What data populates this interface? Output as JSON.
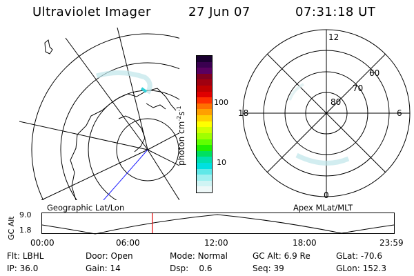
{
  "header": {
    "instrument": "Ultraviolet Imager",
    "date": "27 Jun 07",
    "time": "07:31:18 UT"
  },
  "colorbar": {
    "unit": "photon cm",
    "unit_exp1": "-2",
    "unit_mid": "s",
    "unit_exp2": "-1",
    "tick_100": "100",
    "tick_10": "10",
    "colors": [
      "#1a0030",
      "#3a0050",
      "#5a0060",
      "#800020",
      "#a00010",
      "#c00000",
      "#e00000",
      "#ff3000",
      "#ff7000",
      "#ffa000",
      "#ffd000",
      "#ffff00",
      "#d0ff00",
      "#a0ff00",
      "#60ff00",
      "#20f000",
      "#00e060",
      "#00e0b0",
      "#00e0e0",
      "#60e8e8",
      "#a0f0f0",
      "#d0f4f4",
      "#eef8f8"
    ]
  },
  "polar_plot": {
    "mlt_top": "12",
    "mlt_bottom": "0",
    "mlt_left": "18",
    "mlt_right": "6",
    "lat_60": "60",
    "lat_70": "70",
    "lat_80": "80"
  },
  "panel_labels": {
    "left": "Geographic Lat/Lon",
    "right": "Apex MLat/MLT"
  },
  "altitude_strip": {
    "axis_label": "GC Alt",
    "tick_max": "9.0",
    "tick_min": "1.8",
    "time_ticks": [
      "00:00",
      "06:00",
      "12:00",
      "18:00",
      "23:59"
    ],
    "current_fraction": 0.313
  },
  "footer": {
    "filter_label": "Flt:",
    "filter_value": "LBHL",
    "ip_label": "IP:",
    "ip_value": "36.0",
    "door_label": "Door:",
    "door_value": "Open",
    "gain_label": "Gain:",
    "gain_value": "14",
    "mode_label": "Mode:",
    "mode_value": "Normal",
    "dsp_label": "Dsp:",
    "dsp_value": "0.6",
    "gcalt_label": "GC Alt:",
    "gcalt_value": "6.9 Re",
    "seq_label": "Seq:",
    "seq_value": "39",
    "glat_label": "GLat:",
    "glat_value": "-70.6",
    "glon_label": "GLon:",
    "glon_value": "152.3"
  }
}
